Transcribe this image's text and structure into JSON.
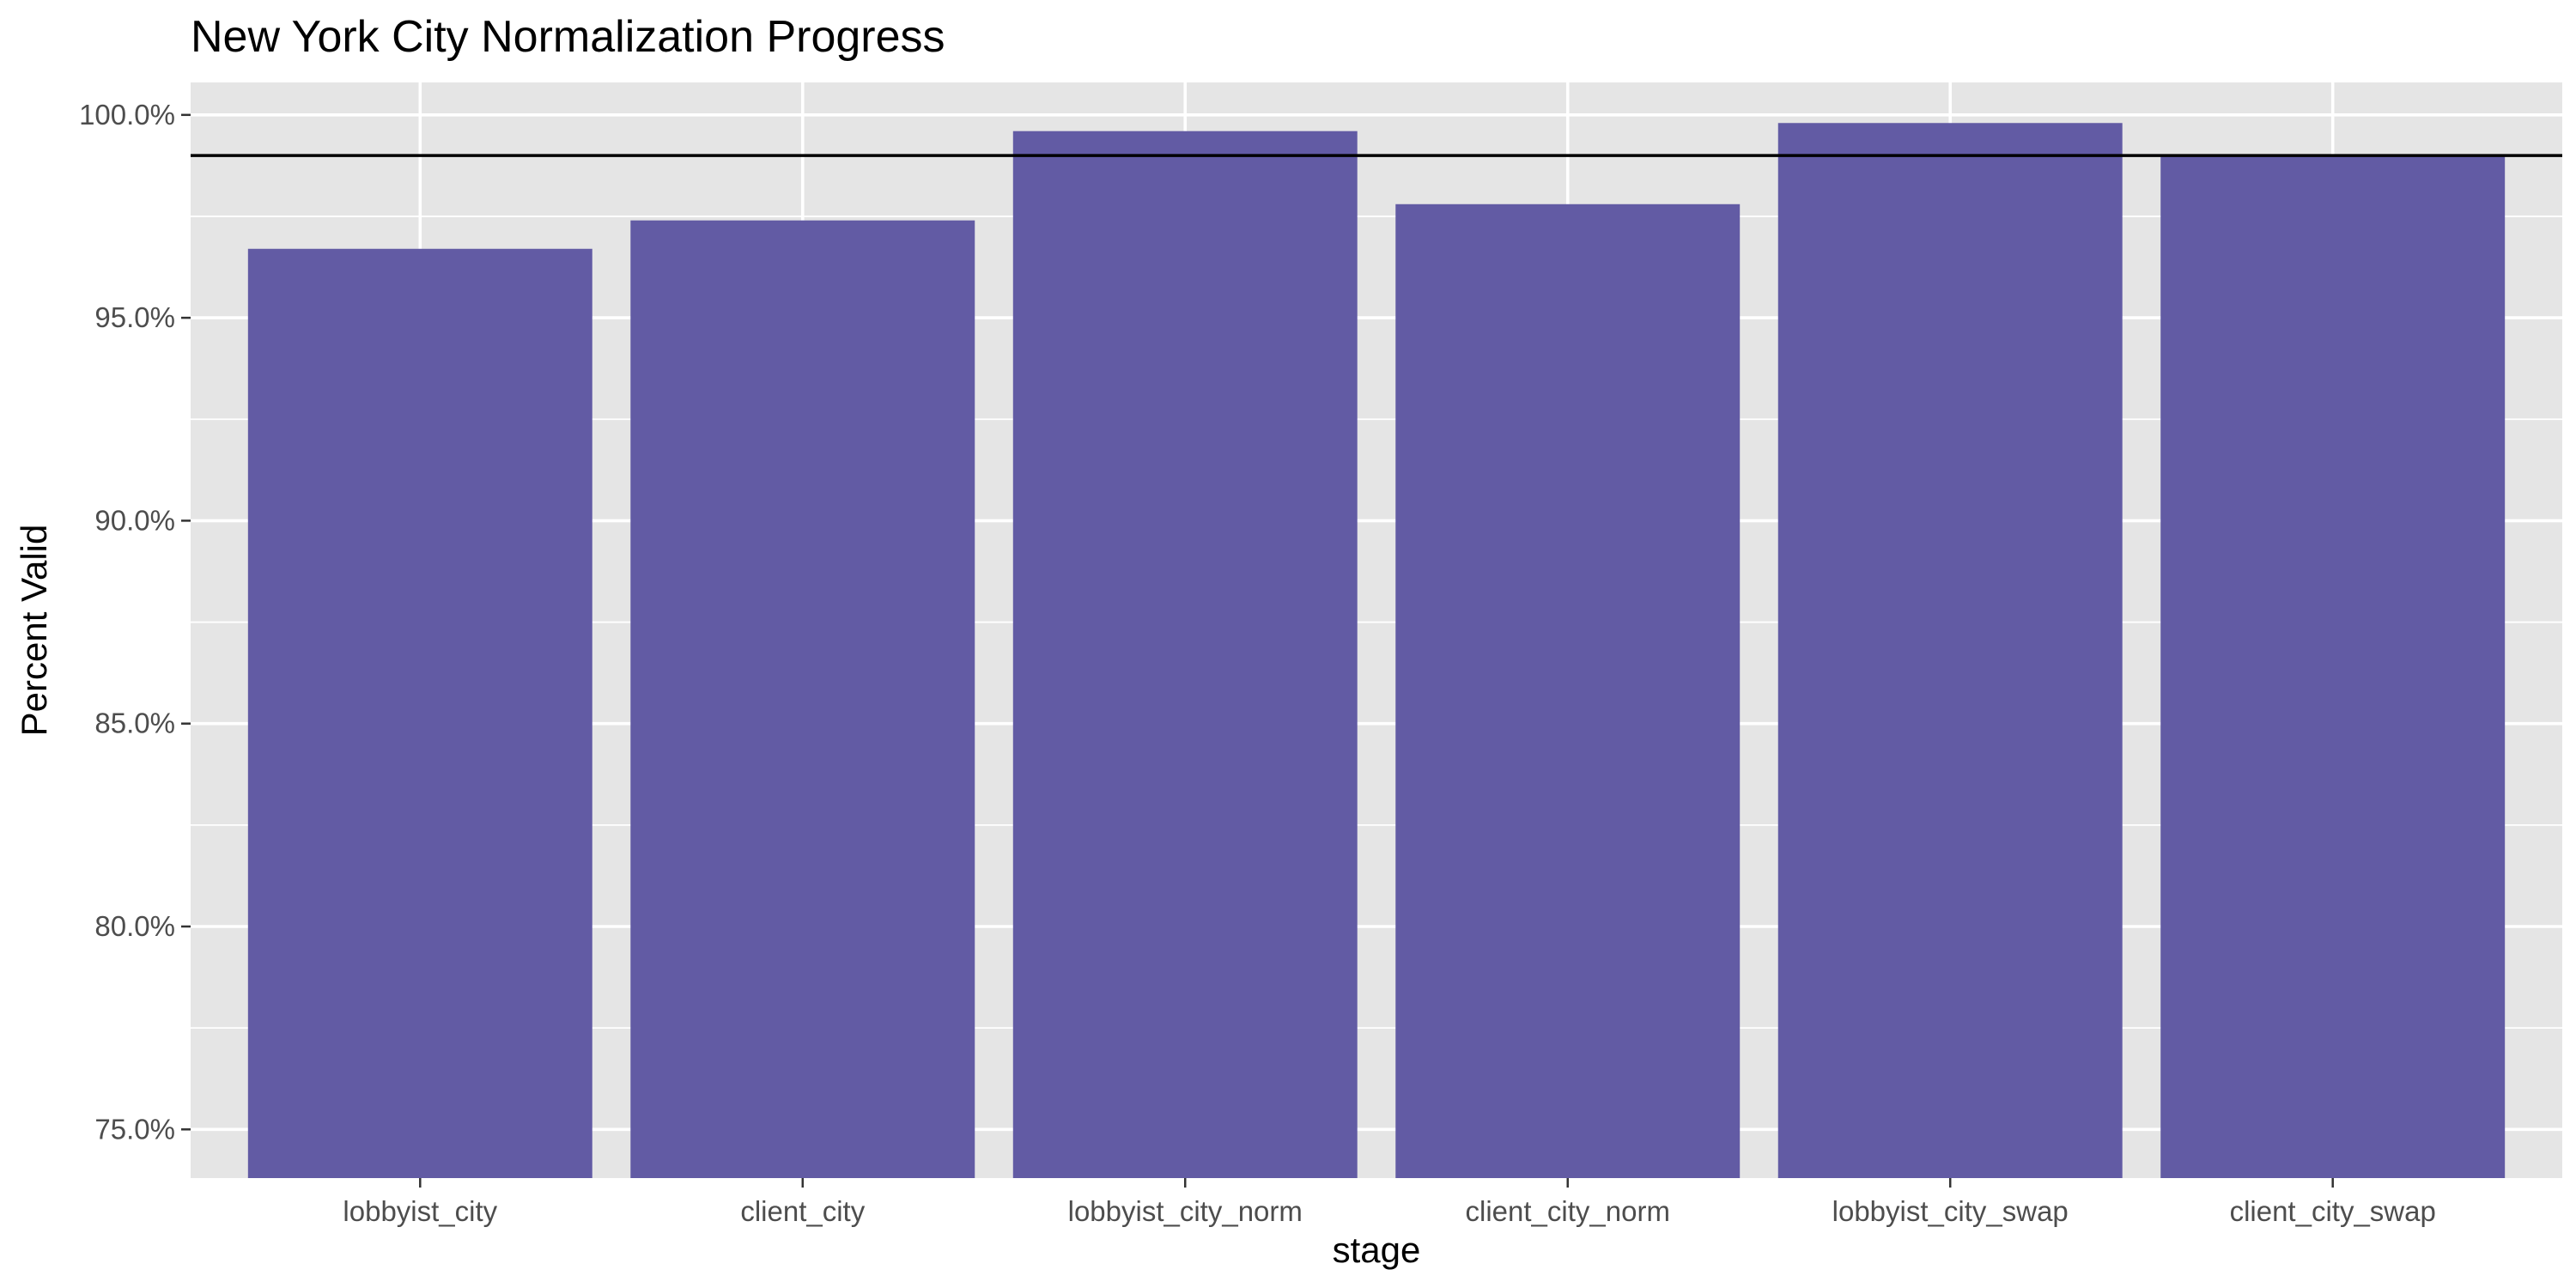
{
  "chart_data": {
    "type": "bar",
    "title": "New York City Normalization Progress",
    "xlabel": "stage",
    "ylabel": "Percent Valid",
    "categories": [
      "lobbyist_city",
      "client_city",
      "lobbyist_city_norm",
      "client_city_norm",
      "lobbyist_city_swap",
      "client_city_swap"
    ],
    "values": [
      0.967,
      0.974,
      0.996,
      0.978,
      0.998,
      0.99
    ],
    "ylim": [
      0.738,
      1.008
    ],
    "y_ticks": [
      0.75,
      0.8,
      0.85,
      0.9,
      0.95,
      1.0
    ],
    "y_tick_labels": [
      "75.0%",
      "80.0%",
      "85.0%",
      "90.0%",
      "95.0%",
      "100.0%"
    ],
    "reference_line": 0.99,
    "grid": true,
    "colors": {
      "bar": "#625BA4",
      "panel": "#E5E5E5",
      "grid": "#FFFFFF",
      "reference_line": "#000000",
      "tick_text": "#4D4D4D"
    }
  }
}
